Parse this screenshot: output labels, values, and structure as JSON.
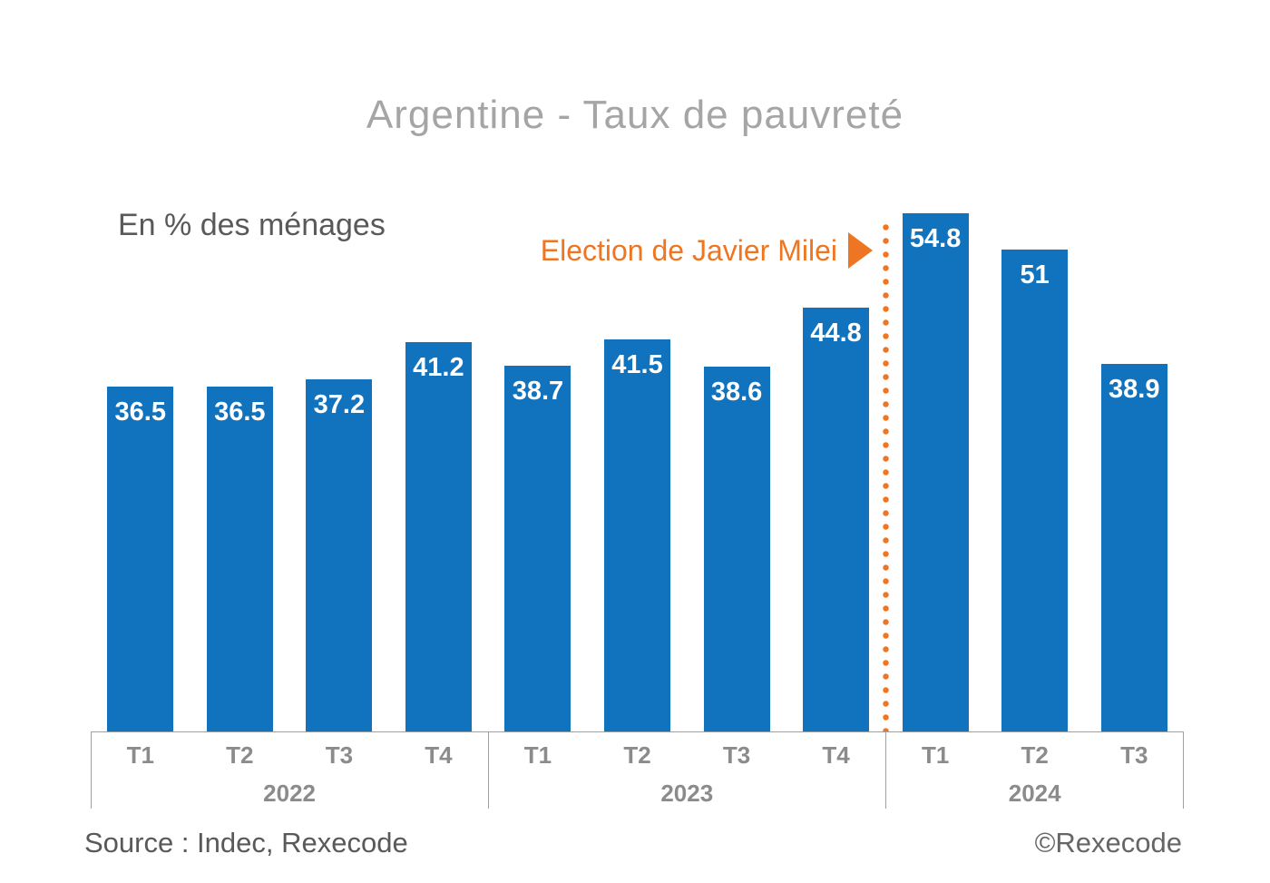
{
  "title": "Argentine - Taux de pauvreté",
  "subtitle": "En % des ménages",
  "annotation": {
    "label": "Election de Javier Milei",
    "marker": "play-triangle-icon"
  },
  "footer": {
    "source": "Source : Indec, Rexecode",
    "copyright": "©Rexecode"
  },
  "colors": {
    "bar_blue": "#1172BD",
    "accent_orange": "#EE7623",
    "title_gray": "#A5A5A5",
    "axis_line_gray": "#A0A0A0",
    "axis_label_gray": "#8B8B8B",
    "text_gray": "#595959",
    "value_label": "#FFFFFF"
  },
  "chart_data": {
    "type": "bar",
    "title": "Argentine - Taux de pauvreté",
    "ylabel": "En % des ménages",
    "xlabel": "",
    "categories": [
      "T1",
      "T2",
      "T3",
      "T4",
      "T1",
      "T2",
      "T3",
      "T4",
      "T1",
      "T2",
      "T3"
    ],
    "year_groups": [
      {
        "label": "2022",
        "span": 4
      },
      {
        "label": "2023",
        "span": 4
      },
      {
        "label": "2024",
        "span": 3
      }
    ],
    "values": [
      36.5,
      36.5,
      37.2,
      41.2,
      38.7,
      41.5,
      38.6,
      44.8,
      54.8,
      51,
      38.9
    ],
    "value_labels": [
      "36.5",
      "36.5",
      "37.2",
      "41.2",
      "38.7",
      "41.5",
      "38.6",
      "44.8",
      "54.8",
      "51",
      "38.9"
    ],
    "ylim": [
      0,
      57
    ],
    "gridlines": false,
    "legend": false,
    "y_axis_visible": false,
    "annotation_line_after_index": 7,
    "annotation_text": "Election de Javier Milei"
  }
}
